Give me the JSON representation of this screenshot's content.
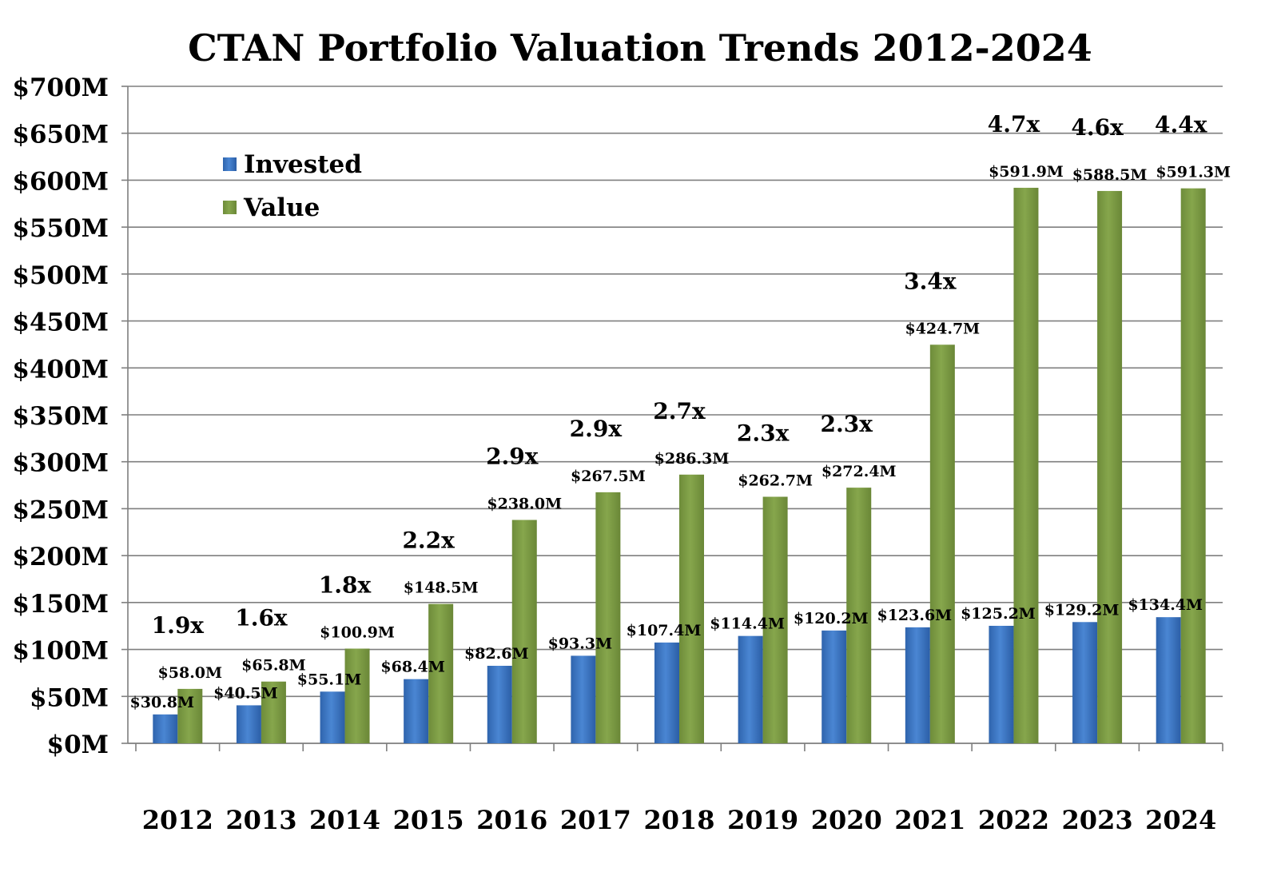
{
  "colors": {
    "invested": "#3f79c4",
    "value": "#7c9a43",
    "grid": "#7f7f7f",
    "axis": "#7f7f7f",
    "text": "#000000"
  },
  "chart_data": {
    "type": "bar",
    "title": "CTAN Portfolio Valuation Trends 2012-2024",
    "xlabel": "",
    "ylabel": "",
    "ylim": [
      0,
      700
    ],
    "y_ticks": [
      {
        "value": 0,
        "label": "$0M"
      },
      {
        "value": 50,
        "label": "$50M"
      },
      {
        "value": 100,
        "label": "$100M"
      },
      {
        "value": 150,
        "label": "$150M"
      },
      {
        "value": 200,
        "label": "$200M"
      },
      {
        "value": 250,
        "label": "$250M"
      },
      {
        "value": 300,
        "label": "$300M"
      },
      {
        "value": 350,
        "label": "$350M"
      },
      {
        "value": 400,
        "label": "$400M"
      },
      {
        "value": 450,
        "label": "$450M"
      },
      {
        "value": 500,
        "label": "$500M"
      },
      {
        "value": 550,
        "label": "$550M"
      },
      {
        "value": 600,
        "label": "$600M"
      },
      {
        "value": 650,
        "label": "$650M"
      },
      {
        "value": 700,
        "label": "$700M"
      }
    ],
    "grid": true,
    "legend_position": "top-left",
    "categories": [
      "2012",
      "2013",
      "2014",
      "2015",
      "2016",
      "2017",
      "2018",
      "2019",
      "2020",
      "2021",
      "2022",
      "2023",
      "2024"
    ],
    "series": [
      {
        "name": "Invested",
        "values": [
          30.8,
          40.5,
          55.1,
          68.4,
          82.6,
          93.3,
          107.4,
          114.4,
          120.2,
          123.6,
          125.2,
          129.2,
          134.4
        ],
        "labels": [
          "$30.8M",
          "$40.5M",
          "$55.1M",
          "$68.4M",
          "$82.6M",
          "$93.3M",
          "$107.4M",
          "$114.4M",
          "$120.2M",
          "$123.6M",
          "$125.2M",
          "$129.2M",
          "$134.4M"
        ]
      },
      {
        "name": "Value",
        "values": [
          58.0,
          65.8,
          100.9,
          148.5,
          238.0,
          267.5,
          286.3,
          262.7,
          272.4,
          424.7,
          591.9,
          588.5,
          591.3
        ],
        "labels": [
          "$58.0M",
          "$65.8M",
          "$100.9M",
          "$148.5M",
          "$238.0M",
          "$267.5M",
          "$286.3M",
          "$262.7M",
          "$272.4M",
          "$424.7M",
          "$591.9M",
          "$588.5M",
          "$591.3M"
        ]
      }
    ],
    "multiples": [
      "1.9x",
      "1.6x",
      "1.8x",
      "2.2x",
      "2.9x",
      "2.9x",
      "2.7x",
      "2.3x",
      "2.3x",
      "3.4x",
      "4.7x",
      "4.6x",
      "4.4x"
    ]
  }
}
